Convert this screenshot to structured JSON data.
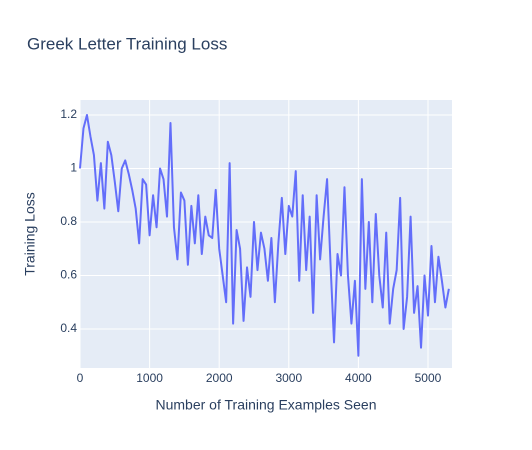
{
  "chart_data": {
    "type": "line",
    "title": "Greek Letter Training Loss",
    "x_label": "Number of Training Examples Seen",
    "y_label": "Training Loss",
    "x": [
      0,
      50,
      100,
      150,
      200,
      250,
      300,
      350,
      400,
      450,
      500,
      550,
      600,
      650,
      700,
      750,
      800,
      850,
      900,
      950,
      1000,
      1050,
      1100,
      1150,
      1200,
      1250,
      1300,
      1350,
      1400,
      1450,
      1500,
      1550,
      1600,
      1650,
      1700,
      1750,
      1800,
      1850,
      1900,
      1950,
      2000,
      2050,
      2100,
      2150,
      2200,
      2250,
      2300,
      2350,
      2400,
      2450,
      2500,
      2550,
      2600,
      2650,
      2700,
      2750,
      2800,
      2850,
      2900,
      2950,
      3000,
      3050,
      3100,
      3150,
      3200,
      3250,
      3300,
      3350,
      3400,
      3450,
      3500,
      3550,
      3600,
      3650,
      3700,
      3750,
      3800,
      3850,
      3900,
      3950,
      4000,
      4050,
      4100,
      4150,
      4200,
      4250,
      4300,
      4350,
      4400,
      4450,
      4500,
      4550,
      4600,
      4650,
      4700,
      4750,
      4800,
      4850,
      4900,
      4950,
      5000,
      5050,
      5100,
      5150,
      5200,
      5250,
      5300
    ],
    "series": [
      {
        "name": "Training Loss",
        "color": "#636efa",
        "values": [
          1.0,
          1.15,
          1.2,
          1.12,
          1.05,
          0.88,
          1.02,
          0.85,
          1.1,
          1.05,
          0.95,
          0.84,
          1.0,
          1.03,
          0.98,
          0.92,
          0.85,
          0.72,
          0.96,
          0.94,
          0.75,
          0.9,
          0.78,
          1.0,
          0.96,
          0.82,
          1.17,
          0.78,
          0.66,
          0.91,
          0.88,
          0.64,
          0.86,
          0.72,
          0.9,
          0.68,
          0.82,
          0.75,
          0.74,
          0.92,
          0.7,
          0.6,
          0.5,
          1.02,
          0.42,
          0.77,
          0.7,
          0.43,
          0.63,
          0.52,
          0.8,
          0.62,
          0.76,
          0.7,
          0.58,
          0.74,
          0.5,
          0.72,
          0.89,
          0.68,
          0.86,
          0.82,
          0.99,
          0.58,
          0.9,
          0.62,
          0.82,
          0.46,
          0.9,
          0.66,
          0.82,
          0.96,
          0.64,
          0.35,
          0.68,
          0.6,
          0.93,
          0.6,
          0.42,
          0.58,
          0.3,
          0.96,
          0.55,
          0.8,
          0.5,
          0.83,
          0.6,
          0.48,
          0.76,
          0.42,
          0.55,
          0.62,
          0.89,
          0.4,
          0.52,
          0.82,
          0.46,
          0.56,
          0.33,
          0.6,
          0.45,
          0.71,
          0.5,
          0.67,
          0.58,
          0.48,
          0.55
        ]
      }
    ],
    "xlim": [
      0,
      5345
    ],
    "xticks": [
      0,
      1000,
      2000,
      3000,
      4000,
      5000
    ],
    "ylim": [
      0.254,
      1.256
    ],
    "yticks": [
      0.4,
      0.6,
      0.8,
      1,
      1.2
    ],
    "grid": true
  }
}
